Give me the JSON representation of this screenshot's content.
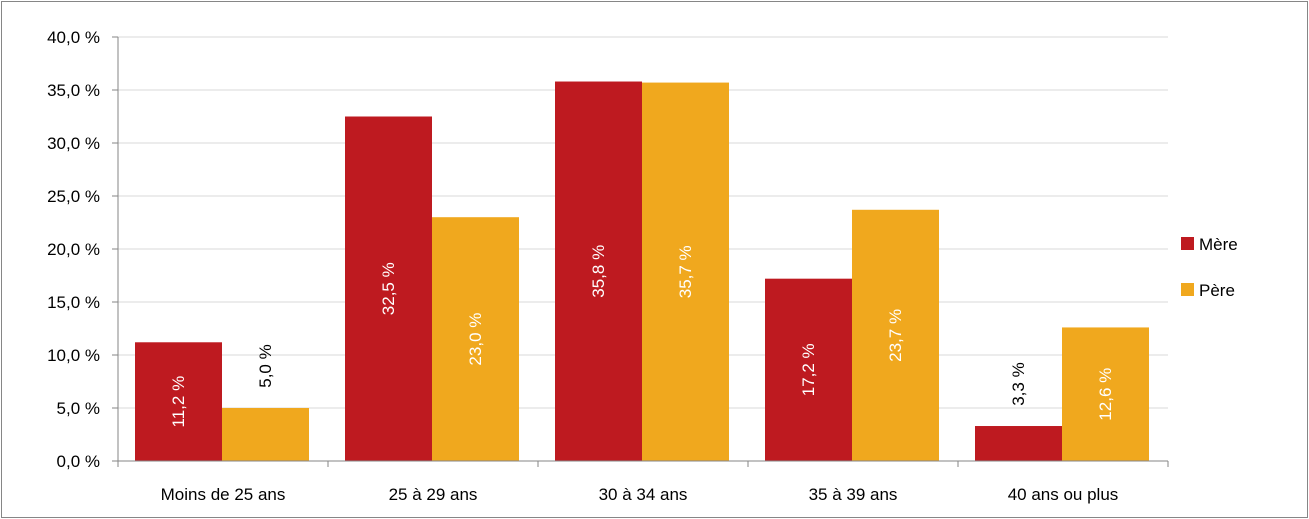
{
  "chart_data": {
    "type": "bar",
    "categories": [
      "Moins de 25 ans",
      "25 à 29 ans",
      "30 à 34 ans",
      "35 à 39 ans",
      "40 ans ou plus"
    ],
    "series": [
      {
        "name": "Mère",
        "color": "#BE1A20",
        "values": [
          11.2,
          32.5,
          35.8,
          17.2,
          3.3
        ],
        "labels": [
          "11,2 %",
          "32,5 %",
          "35,8 %",
          "17,2 %",
          "3,3 %"
        ]
      },
      {
        "name": "Père",
        "color": "#F0A81E",
        "values": [
          5.0,
          23.0,
          35.7,
          23.7,
          12.6
        ],
        "labels": [
          "5,0 %",
          "23,0 %",
          "35,7 %",
          "23,7 %",
          "12,6 %"
        ]
      }
    ],
    "y_ticks": [
      0,
      5,
      10,
      15,
      20,
      25,
      30,
      35,
      40
    ],
    "y_tick_labels": [
      "0,0 %",
      "5,0 %",
      "10,0 %",
      "15,0 %",
      "20,0 %",
      "25,0 %",
      "30,0 %",
      "35,0 %",
      "40,0 %"
    ],
    "ylim": [
      0,
      40
    ],
    "grid": true,
    "legend_position": "right",
    "title": "",
    "xlabel": "",
    "ylabel": ""
  }
}
